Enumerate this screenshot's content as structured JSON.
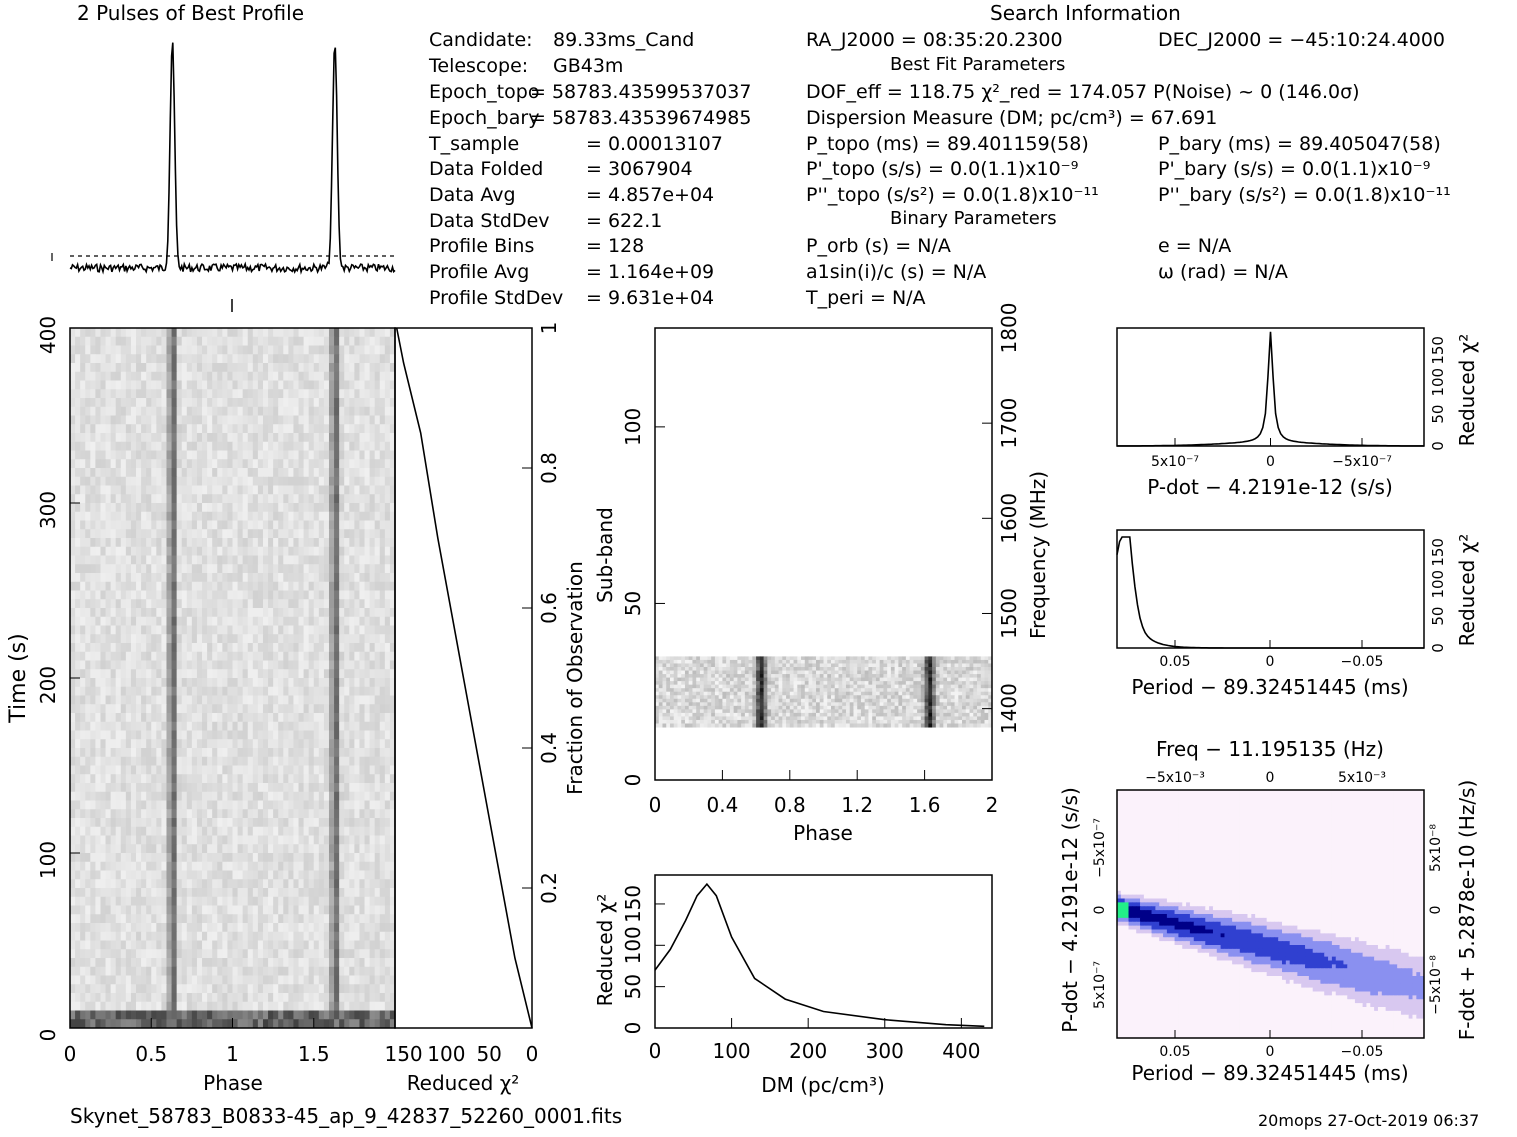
{
  "header": {
    "profile_title": "2 Pulses of Best Profile",
    "search_title": "Search Information",
    "best_fit_title": "Best Fit Parameters",
    "binary_title": "Binary Parameters"
  },
  "info_left": [
    {
      "label": "Candidate:",
      "value": "89.33ms_Cand"
    },
    {
      "label": "Telescope:",
      "value": "GB43m"
    },
    {
      "label": "Epoch_topo",
      "value": "= 58783.43599537037"
    },
    {
      "label": "Epoch_bary",
      "value": "= 58783.43539674985"
    },
    {
      "label": "T_sample",
      "value": "=   0.00013107"
    },
    {
      "label": "Data Folded",
      "value": "=   3067904"
    },
    {
      "label": "Data Avg",
      "value": "=   4.857e+04"
    },
    {
      "label": "Data StdDev",
      "value": "=   622.1"
    },
    {
      "label": "Profile Bins",
      "value": "=   128"
    },
    {
      "label": "Profile Avg",
      "value": "=   1.164e+09"
    },
    {
      "label": "Profile StdDev",
      "value": "=   9.631e+04"
    }
  ],
  "info_right": {
    "ra": "RA_J2000 = 08:35:20.2300",
    "dec": "DEC_J2000 = −45:10:24.4000",
    "dof": "DOF_eff = 118.75   χ²_red = 174.057   P(Noise) ~ 0    (146.0σ)",
    "dm": "Dispersion Measure (DM; pc/cm³) = 67.691",
    "p_topo": "P_topo (ms) =  89.401159(58)",
    "p_bary": "P_bary (ms) =  89.405047(58)",
    "pd_topo": "P'_topo (s/s) = 0.0(1.1)x10⁻⁹",
    "pd_bary": "P'_bary (s/s) = 0.0(1.1)x10⁻⁹",
    "pdd_topo": "P''_topo (s/s²) = 0.0(1.8)x10⁻¹¹",
    "pdd_bary": "P''_bary (s/s²) = 0.0(1.8)x10⁻¹¹",
    "p_orb": "P_orb (s) = N/A",
    "e": "e = N/A",
    "a1": "a1sin(i)/c (s) = N/A",
    "omega": "ω (rad) = N/A",
    "t_peri": "T_peri = N/A"
  },
  "footer": {
    "filename": "Skynet_58783_B0833-45_ap_9_42837_52260_0001.fits",
    "stamp": "20mops 27-Oct-2019 06:37"
  },
  "colors": {
    "ink": "#000000",
    "dmdd_low": "#ffffff",
    "dmdd_mid": "#3344cc",
    "dmdd_high": "#22ee88"
  },
  "chart_data": [
    {
      "type": "line",
      "title": "2 Pulses of Best Profile",
      "x": [
        0,
        2
      ],
      "peaks_phase": [
        0.63,
        1.63
      ],
      "baseline": "dashed"
    },
    {
      "type": "heatmap",
      "name": "time-phase",
      "xlabel": "Phase",
      "ylabel": "Time (s)",
      "xlim": [
        0,
        2
      ],
      "ylim": [
        0,
        400
      ],
      "x_ticks": [
        "0",
        "0.5",
        "1",
        "1.5"
      ],
      "y_ticks": [
        "0",
        "100",
        "200",
        "300",
        "400"
      ],
      "pulse_phase": [
        0.63,
        1.63
      ]
    },
    {
      "type": "line",
      "name": "time-chi2",
      "xlabel": "Reduced χ²",
      "ylabel": "Fraction of Observation",
      "x_ticks": [
        "150",
        "100",
        "50",
        "0"
      ],
      "y_ticks": [
        "0.2",
        "0.4",
        "0.6",
        "0.8",
        "1"
      ],
      "points": [
        [
          0,
          0
        ],
        [
          20,
          0.1
        ],
        [
          50,
          0.3
        ],
        [
          80,
          0.5
        ],
        [
          110,
          0.7
        ],
        [
          130,
          0.85
        ],
        [
          150,
          0.95
        ],
        [
          158,
          1.0
        ]
      ]
    },
    {
      "type": "heatmap",
      "name": "subband-phase",
      "xlabel": "Phase",
      "ylabel": "Sub-band",
      "ylabel2": "Frequency (MHz)",
      "x_ticks": [
        "0",
        "0.4",
        "0.8",
        "1.2",
        "1.6",
        "2"
      ],
      "y_ticks": [
        "0",
        "50",
        "100"
      ],
      "y2_ticks": [
        "1400",
        "1500",
        "1600",
        "1700",
        "1800"
      ],
      "subband_range": [
        15,
        35
      ],
      "pulse_phase": [
        0.63,
        1.63
      ]
    },
    {
      "type": "line",
      "name": "dm-chi2",
      "xlabel": "DM (pc/cm³)",
      "ylabel": "Reduced χ²",
      "x_ticks": [
        "0",
        "100",
        "200",
        "300",
        "400"
      ],
      "y_ticks": [
        "0",
        "50",
        "100",
        "150"
      ],
      "x": [
        0,
        20,
        40,
        55,
        67.7,
        80,
        100,
        130,
        170,
        220,
        300,
        380,
        430
      ],
      "y": [
        70,
        95,
        130,
        160,
        174,
        160,
        110,
        60,
        35,
        20,
        10,
        4,
        2
      ]
    },
    {
      "type": "line",
      "name": "pdot-chi2",
      "xlabel": "P-dot − 4.2191e-12 (s/s)",
      "ylabel": "Reduced χ²",
      "x_ticks": [
        "5x10⁻⁷",
        "0",
        "−5x10⁻⁷"
      ],
      "y_ticks": [
        "0",
        "50",
        "100",
        "150"
      ],
      "peak_x": 0,
      "peak_y": 174
    },
    {
      "type": "line",
      "name": "period-chi2",
      "xlabel": "Period − 89.32451445 (ms)",
      "ylabel": "Reduced χ²",
      "x_ticks": [
        "0.05",
        "0",
        "−0.05"
      ],
      "y_ticks": [
        "0",
        "50",
        "100",
        "150"
      ],
      "peak_x": 0.08,
      "peak_y": 174
    },
    {
      "type": "heatmap",
      "name": "period-pdot",
      "title": "Freq − 11.195135 (Hz)",
      "xlabel": "Period − 89.32451445 (ms)",
      "ylabel": "P-dot − 4.2191e-12 (s/s)",
      "ylabel2": "F-dot + 5.2878e-10 (Hz/s)",
      "x_ticks": [
        "0.05",
        "0",
        "−0.05"
      ],
      "top_ticks": [
        "−5x10⁻³",
        "0",
        "5x10⁻³"
      ],
      "y_ticks": [
        "−5x10⁻⁷",
        "0",
        "5x10⁻⁷"
      ],
      "y2_ticks": [
        "5x10⁻⁸",
        "0",
        "−5x10⁻⁸"
      ]
    }
  ]
}
